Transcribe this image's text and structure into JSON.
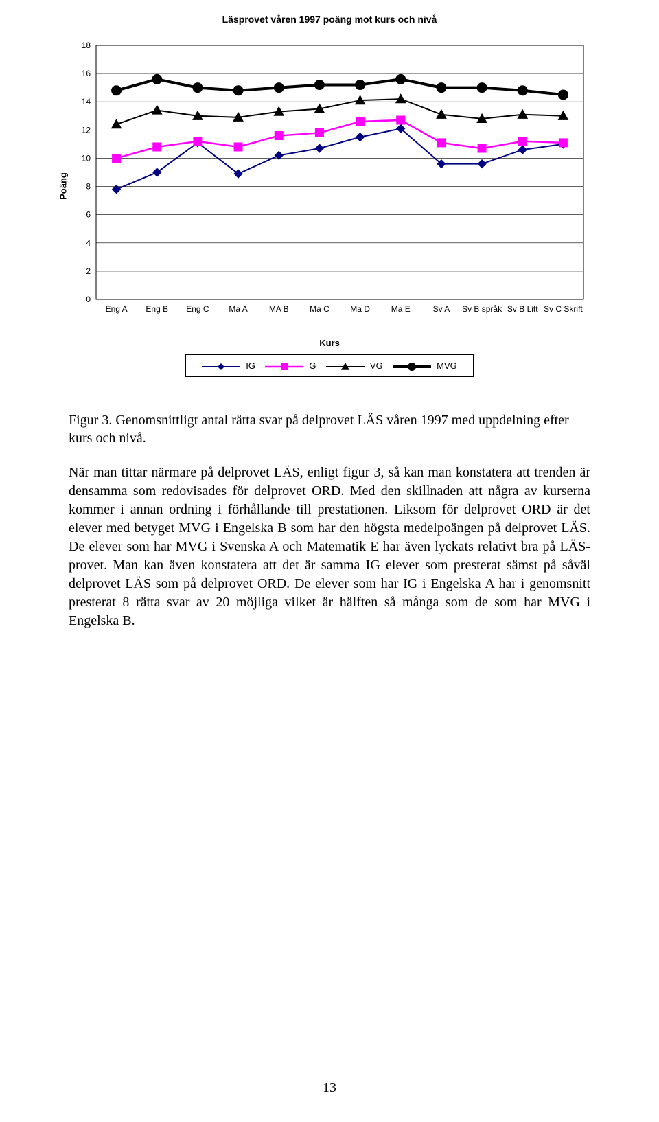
{
  "chart": {
    "title": "Läsprovet våren 1997 poäng mot kurs och nivå",
    "type": "line",
    "y_label": "Poäng",
    "x_label": "Kurs",
    "ylim": [
      0,
      18
    ],
    "ytick_step": 2,
    "categories": [
      "Eng A",
      "Eng B",
      "Eng C",
      "Ma A",
      "MA B",
      "Ma C",
      "Ma D",
      "Ma E",
      "Sv A",
      "Sv B språk",
      "Sv B Litt",
      "Sv C Skrift"
    ],
    "series": [
      {
        "name": "IG",
        "color": "#000080",
        "marker": "diamond",
        "marker_fill": "#000080",
        "line_width": 2,
        "values": [
          7.8,
          9.0,
          11.1,
          8.9,
          10.2,
          10.7,
          11.5,
          12.1,
          9.6,
          9.6,
          10.6,
          11.0
        ]
      },
      {
        "name": "G",
        "color": "#ff00ff",
        "marker": "square",
        "marker_fill": "#ff00ff",
        "line_width": 2.5,
        "values": [
          10.0,
          10.8,
          11.2,
          10.8,
          11.6,
          11.8,
          12.6,
          12.7,
          11.1,
          10.7,
          11.2,
          11.1
        ]
      },
      {
        "name": "VG",
        "color": "#000000",
        "marker": "triangle",
        "marker_fill": "#000000",
        "line_width": 2,
        "values": [
          12.4,
          13.4,
          13.0,
          12.9,
          13.3,
          13.5,
          14.1,
          14.2,
          13.1,
          12.8,
          13.1,
          13.0
        ]
      },
      {
        "name": "MVG",
        "color": "#000000",
        "marker": "circle",
        "marker_fill": "#000000",
        "line_width": 4,
        "values": [
          14.8,
          15.6,
          15.0,
          14.8,
          15.0,
          15.2,
          15.2,
          15.6,
          15.0,
          15.0,
          14.8,
          14.5
        ]
      }
    ],
    "plot_bg": "#ffffff",
    "grid_color": "#000000",
    "axis_color": "#000000",
    "axis_font_size": 12,
    "title_font_size": 14
  },
  "figure_caption": "Figur 3. Genomsnittligt antal rätta svar på delprovet LÄS våren 1997 med uppdelning efter kurs och nivå.",
  "body": "När man tittar närmare på delprovet LÄS, enligt figur 3, så kan man konstatera att trenden är densamma som redovisades för delprovet ORD. Med den skillnaden att några av kurserna kommer i annan ordning i förhållande till prestationen. Liksom för delprovet ORD är det elever med betyget MVG i Engelska B som har den högsta medelpoängen på delprovet LÄS. De elever som har MVG i Svenska A och Matematik E har även lyckats relativt bra på LÄS-provet. Man kan även konstatera att det är samma IG elever som presterat sämst på såväl delprovet LÄS som på delprovet ORD. De elever som har IG i Engelska A har i genomsnitt presterat 8 rätta svar av 20 möjliga vilket är hälften så många som de som har MVG i Engelska B.",
  "page_number": "13"
}
